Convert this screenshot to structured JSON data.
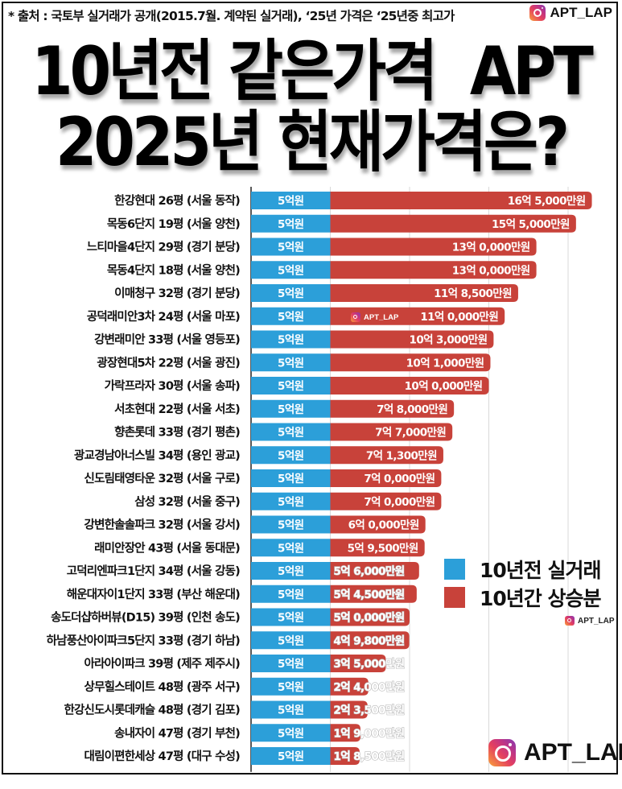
{
  "header": {
    "source_note": "* 출처 : 국토부 실거래가 공개(2015.7월. 계약된 실거래), ‘25년 가격은 ‘25년중 최고가",
    "brand": "APT_LAP",
    "brand_icon": "instagram-icon"
  },
  "title": {
    "line1": "10년전 같은가격  APT",
    "line2": "2025년 현재가격은?"
  },
  "legend": {
    "items": [
      {
        "label": "10년전 실거래",
        "color": "#2c9fd9"
      },
      {
        "label": "10년간 상승분",
        "color": "#c8423a"
      }
    ]
  },
  "watermarks": {
    "in_chart": "APT_LAP",
    "legend_mark": "APT_LAP",
    "bottom": "APT_LAP"
  },
  "colors": {
    "base": "#2c9fd9",
    "increase": "#c8423a",
    "grid": "#d9d9d9",
    "axis": "#222222"
  },
  "chart_data": {
    "type": "bar",
    "orientation": "horizontal",
    "stacked": true,
    "title": "10년전 같은가격 APT 2025년 현재가격은?",
    "xlabel": "",
    "ylabel": "",
    "unit": "억원",
    "xlim": [
      0,
      22
    ],
    "grid": true,
    "legend_position": "right",
    "categories": [
      "한강현대 26평 (서울 동작)",
      "목동6단지 19평 (서울 양천)",
      "느티마을4단지 29평 (경기 분당)",
      "목동4단지 18평 (서울 양천)",
      "이매청구 32평 (경기 분당)",
      "공덕래미안3차 24평 (서울 마포)",
      "강변래미안 33평 (서울 영등포)",
      "광장현대5차 22평 (서울 광진)",
      "가락프라자 30평 (서울 송파)",
      "서초현대 22평 (서울 서초)",
      "향촌롯데 33평 (경기 평촌)",
      "광교경남아너스빌 34평 (용인 광교)",
      "신도림태영타운 32평 (서울 구로)",
      "삼성 32평 (서울 중구)",
      "강변한솔솔파크 32평 (서울 강서)",
      "래미안장안 43평 (서울 동대문)",
      "고덕리엔파크1단지 34평 (서울 강동)",
      "해운대자이1단지 33평 (부산 해운대)",
      "송도더샵하버뷰(D15) 39평 (인천 송도)",
      "하남풍산아이파크5단지 33평 (경기 하남)",
      "아라아이파크 39평 (제주 제주시)",
      "상무힐스테이트 48평 (광주 서구)",
      "한강신도시롯데캐슬 48평 (경기 김포)",
      "송내자이 47평 (경기 부천)",
      "대림이편한세상 47평 (대구 수성)"
    ],
    "series": [
      {
        "name": "10년전 실거래",
        "values": [
          5,
          5,
          5,
          5,
          5,
          5,
          5,
          5,
          5,
          5,
          5,
          5,
          5,
          5,
          5,
          5,
          5,
          5,
          5,
          5,
          5,
          5,
          5,
          5,
          5
        ],
        "labels": [
          "5억원",
          "5억원",
          "5억원",
          "5억원",
          "5억원",
          "5억원",
          "5억원",
          "5억원",
          "5억원",
          "5억원",
          "5억원",
          "5억원",
          "5억원",
          "5억원",
          "5억원",
          "5억원",
          "5억원",
          "5억원",
          "5억원",
          "5억원",
          "5억원",
          "5억원",
          "5억원",
          "5억원",
          "5억원"
        ]
      },
      {
        "name": "10년간 상승분",
        "values": [
          16.5,
          15.5,
          13.0,
          13.0,
          11.85,
          11.0,
          10.3,
          10.1,
          10.0,
          7.8,
          7.7,
          7.13,
          7.0,
          7.0,
          6.0,
          5.95,
          5.6,
          5.45,
          5.0,
          4.98,
          3.5,
          2.4,
          2.35,
          1.9,
          1.85
        ],
        "labels": [
          "16억 5,000만원",
          "15억 5,000만원",
          "13억 0,000만원",
          "13억 0,000만원",
          "11억 8,500만원",
          "11억 0,000만원",
          "10억 3,000만원",
          "10억 1,000만원",
          "10억 0,000만원",
          "7억 8,000만원",
          "7억 7,000만원",
          "7억 1,300만원",
          "7억 0,000만원",
          "7억 0,000만원",
          "6억 0,000만원",
          "5억 9,500만원",
          "5억 6,000만원",
          "5억 4,500만원",
          "5억 0,000만원",
          "4억 9,800만원",
          "3억 5,000만원",
          "2억 4,000만원",
          "2억 3,500만원",
          "1억 9,000만원",
          "1억 8,500만원"
        ]
      }
    ]
  }
}
